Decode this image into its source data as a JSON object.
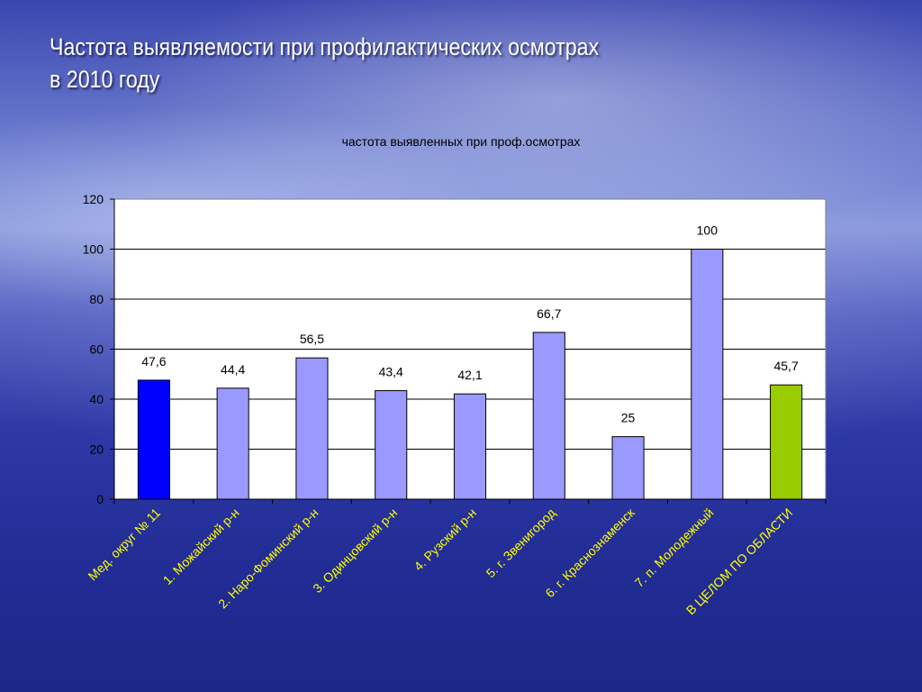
{
  "slide": {
    "title_line1": "Частота выявляемости при профилактических осмотрах",
    "title_line2": "в 2010 году"
  },
  "chart_data": {
    "type": "bar",
    "title": "частота выявленных при проф.осмотрах",
    "categories": [
      "Мед. округ № 11",
      "1. Можайский р-н",
      "2. Наро-Фоминский р-н",
      "3. Одинцовский р-н",
      "4. Рузский р-н",
      "5. г. Звенигород",
      "6. г. Краснознаменск",
      "7. п. Молодежный",
      "В ЦЕЛОМ ПО ОБЛАСТИ"
    ],
    "values": [
      47.6,
      44.4,
      56.5,
      43.4,
      42.1,
      66.7,
      25,
      100,
      45.7
    ],
    "data_labels": [
      "47,6",
      "44,4",
      "56,5",
      "43,4",
      "42,1",
      "66,7",
      "25",
      "100",
      "45,7"
    ],
    "ylim": [
      0,
      120
    ],
    "yticks": [
      0,
      20,
      40,
      60,
      80,
      100,
      120
    ],
    "grid": true,
    "legend": "none",
    "bar_colors": [
      "#0000ff",
      "#9999ff",
      "#9999ff",
      "#9999ff",
      "#9999ff",
      "#9999ff",
      "#9999ff",
      "#9999ff",
      "#99cc00"
    ],
    "category_label_color": "#ffff00"
  }
}
